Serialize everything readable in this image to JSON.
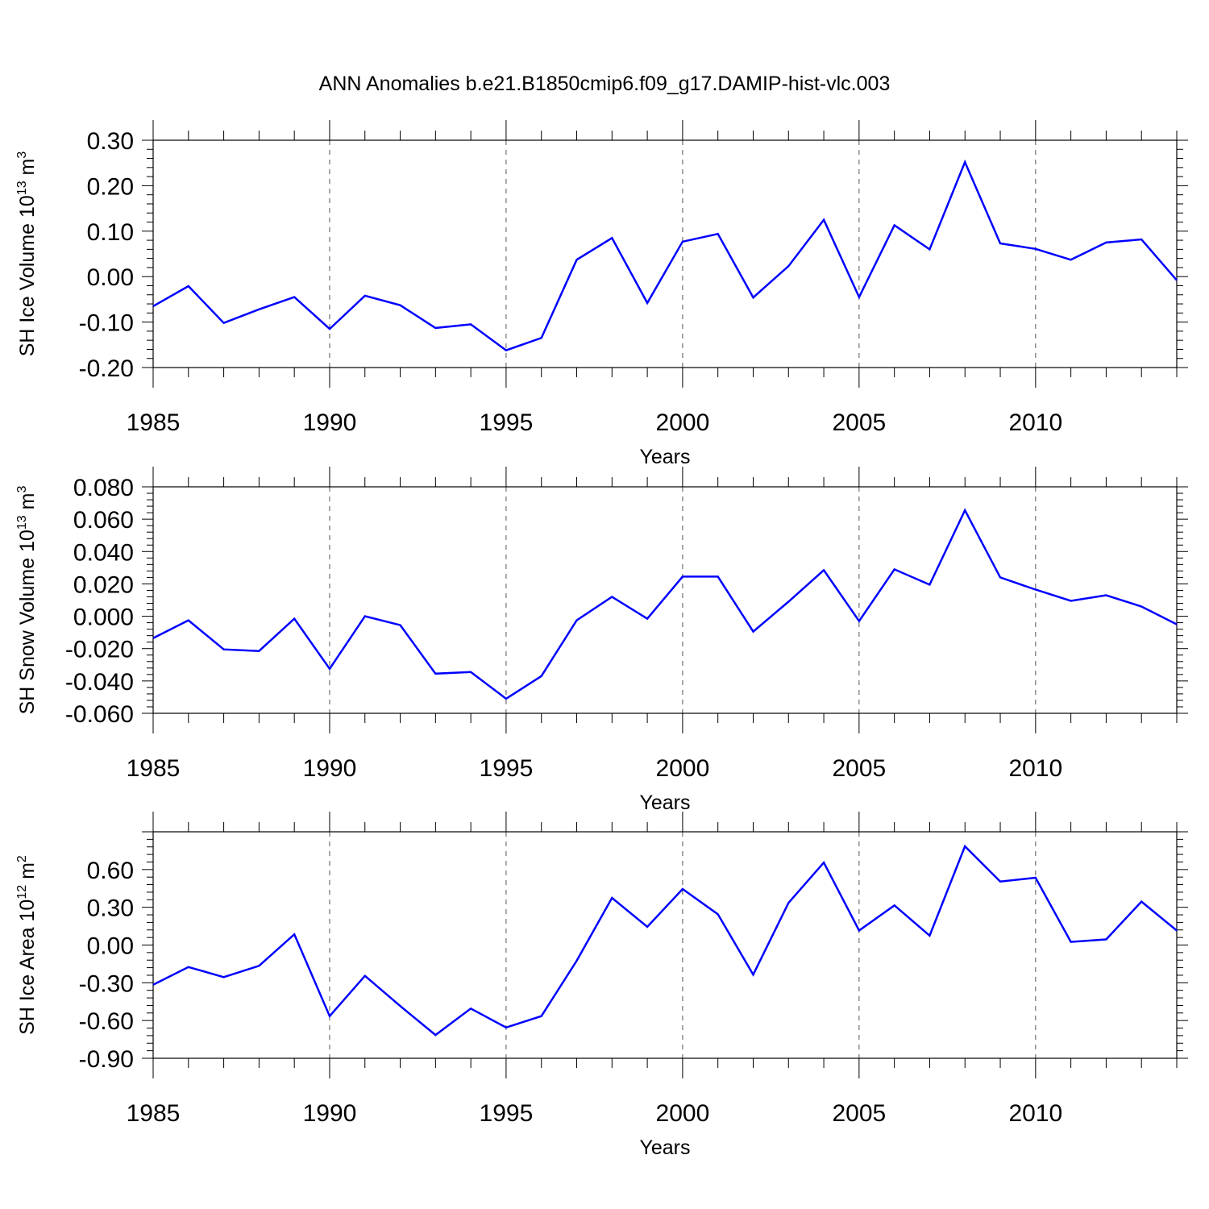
{
  "title": "ANN Anomalies b.e21.B1850cmip6.f09_g17.DAMIP-hist-vlc.003",
  "colors": {
    "line": "#0000ff",
    "axis": "#000000",
    "grid": "#555555"
  },
  "chart_data": [
    {
      "type": "line",
      "ylabel": "SH Ice Volume 10",
      "ylabel_exp": "13",
      "ylabel_unit": " m",
      "ylabel_unit_exp": "3",
      "xlabel": "Years",
      "xlim": [
        1985,
        2014
      ],
      "ylim": [
        -0.2,
        0.3
      ],
      "yticks": [
        "-0.20",
        "-0.10",
        "0.00",
        "0.10",
        "0.20",
        "0.30"
      ],
      "ytick_values": [
        -0.2,
        -0.1,
        0.0,
        0.1,
        0.2,
        0.3
      ],
      "xticks": [
        "1985",
        "1990",
        "1995",
        "2000",
        "2005",
        "2010"
      ],
      "xtick_values": [
        1985,
        1990,
        1995,
        2000,
        2005,
        2010
      ],
      "x": [
        1985,
        1986,
        1987,
        1988,
        1989,
        1990,
        1991,
        1992,
        1993,
        1994,
        1995,
        1996,
        1997,
        1998,
        1999,
        2000,
        2001,
        2002,
        2003,
        2004,
        2005,
        2006,
        2007,
        2008,
        2009,
        2010,
        2011,
        2012,
        2013,
        2014
      ],
      "values": [
        -0.065,
        -0.021,
        -0.102,
        -0.072,
        -0.045,
        -0.115,
        -0.042,
        -0.063,
        -0.113,
        -0.105,
        -0.162,
        -0.135,
        0.037,
        0.085,
        -0.058,
        0.077,
        0.094,
        -0.046,
        0.023,
        0.125,
        -0.045,
        0.113,
        0.06,
        0.252,
        0.073,
        0.061,
        0.037,
        0.075,
        0.082,
        -0.008
      ]
    },
    {
      "type": "line",
      "ylabel": "SH Snow Volume 10",
      "ylabel_exp": "13",
      "ylabel_unit": " m",
      "ylabel_unit_exp": "3",
      "xlabel": "Years",
      "xlim": [
        1985,
        2014
      ],
      "ylim": [
        -0.06,
        0.08
      ],
      "yticks": [
        "-0.060",
        "-0.040",
        "-0.020",
        "0.000",
        "0.020",
        "0.040",
        "0.060",
        "0.080"
      ],
      "ytick_values": [
        -0.06,
        -0.04,
        -0.02,
        0.0,
        0.02,
        0.04,
        0.06,
        0.08
      ],
      "xticks": [
        "1985",
        "1990",
        "1995",
        "2000",
        "2005",
        "2010"
      ],
      "xtick_values": [
        1985,
        1990,
        1995,
        2000,
        2005,
        2010
      ],
      "x": [
        1985,
        1986,
        1987,
        1988,
        1989,
        1990,
        1991,
        1992,
        1993,
        1994,
        1995,
        1996,
        1997,
        1998,
        1999,
        2000,
        2001,
        2002,
        2003,
        2004,
        2005,
        2006,
        2007,
        2008,
        2009,
        2010,
        2011,
        2012,
        2013,
        2014
      ],
      "values": [
        -0.0135,
        -0.0025,
        -0.0205,
        -0.0215,
        -0.0015,
        -0.0325,
        0.0,
        -0.0055,
        -0.0355,
        -0.0345,
        -0.051,
        -0.037,
        -0.0025,
        0.012,
        -0.0015,
        0.0245,
        0.0245,
        -0.0095,
        0.009,
        0.0285,
        -0.003,
        0.029,
        0.0195,
        0.0655,
        0.024,
        0.0165,
        0.0095,
        0.013,
        0.006,
        -0.005
      ]
    },
    {
      "type": "line",
      "ylabel": "SH Ice Area 10",
      "ylabel_exp": "12",
      "ylabel_unit": " m",
      "ylabel_unit_exp": "2",
      "xlabel": "Years",
      "xlim": [
        1985,
        2014
      ],
      "ylim": [
        -0.9,
        0.9
      ],
      "yticks": [
        "-0.90",
        "-0.60",
        "-0.30",
        "0.00",
        "0.30",
        "0.60"
      ],
      "ytick_values": [
        -0.9,
        -0.6,
        -0.3,
        0.0,
        0.3,
        0.6
      ],
      "xticks": [
        "1985",
        "1990",
        "1995",
        "2000",
        "2005",
        "2010"
      ],
      "xtick_values": [
        1985,
        1990,
        1995,
        2000,
        2005,
        2010
      ],
      "x": [
        1985,
        1986,
        1987,
        1988,
        1989,
        1990,
        1991,
        1992,
        1993,
        1994,
        1995,
        1996,
        1997,
        1998,
        1999,
        2000,
        2001,
        2002,
        2003,
        2004,
        2005,
        2006,
        2007,
        2008,
        2009,
        2010,
        2011,
        2012,
        2013,
        2014
      ],
      "values": [
        -0.315,
        -0.175,
        -0.255,
        -0.165,
        0.085,
        -0.565,
        -0.245,
        -0.485,
        -0.715,
        -0.505,
        -0.655,
        -0.565,
        -0.125,
        0.375,
        0.145,
        0.445,
        0.245,
        -0.235,
        0.335,
        0.655,
        0.115,
        0.315,
        0.075,
        0.785,
        0.505,
        0.535,
        0.025,
        0.045,
        0.345,
        0.115
      ]
    }
  ]
}
